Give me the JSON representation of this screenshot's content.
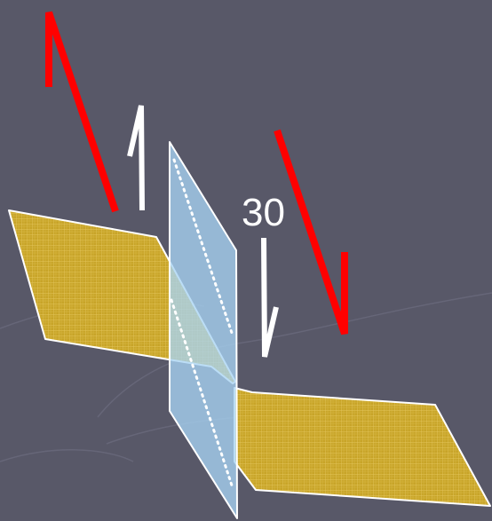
{
  "diagram": {
    "label": "30",
    "colors": {
      "background": "#585868",
      "layer_fill": "#c8a428",
      "layer_grid": "#e8cc60",
      "fault_plane": "#a8d4f4",
      "red_arrows": "#ff0000",
      "white_arrows": "#ffffff"
    }
  }
}
